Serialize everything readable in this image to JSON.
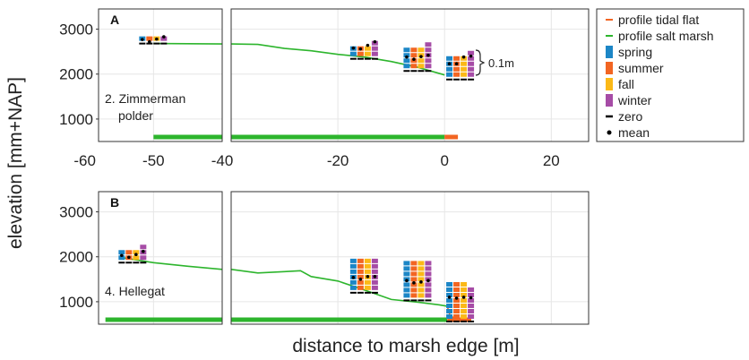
{
  "chart_data": {
    "type": "line",
    "xlabel": "distance to marsh edge [m]",
    "ylabel": "elevation [mm+NAP]",
    "y_ticks": [
      "1000",
      "2000",
      "3000"
    ],
    "x_ticks_left": [
      "-60",
      "-50",
      "-40"
    ],
    "x_ticks_right": [
      "-20",
      "0",
      "20"
    ],
    "colors": {
      "profile_tidal_flat": "#f26522",
      "profile_salt_marsh": "#2db52d",
      "spring": "#1c86c6",
      "summer": "#f26522",
      "fall": "#fbb917",
      "winter": "#a64ca6",
      "grid": "#e6e6e6"
    },
    "legend": {
      "placement": "right",
      "items": [
        {
          "key": "profile_tidal_flat",
          "label": "profile tidal flat",
          "symbol": "line"
        },
        {
          "key": "profile_salt_marsh",
          "label": "profile salt marsh",
          "symbol": "line"
        },
        {
          "key": "spring",
          "label": "spring",
          "symbol": "box"
        },
        {
          "key": "summer",
          "label": "summer",
          "symbol": "box"
        },
        {
          "key": "fall",
          "label": "fall",
          "symbol": "box"
        },
        {
          "key": "winter",
          "label": "winter",
          "symbol": "box"
        },
        {
          "key": "zero",
          "label": "zero",
          "symbol": "dash"
        },
        {
          "key": "mean",
          "label": "mean",
          "symbol": "dot"
        }
      ]
    },
    "scale_bar_label": "0.1m",
    "panels": [
      {
        "letter": "A",
        "site": [
          "2. Zimmerman",
          "polder"
        ],
        "ylim": [
          500,
          3450
        ],
        "left_xlim": [
          -58,
          -40
        ],
        "right_xlim": [
          -40,
          27
        ],
        "salt_marsh_profile": [
          [
            -50,
            2680
          ],
          [
            -40,
            2670
          ],
          [
            -35,
            2660
          ],
          [
            -30,
            2570
          ],
          [
            -25,
            2520
          ],
          [
            -20,
            2440
          ],
          [
            -15,
            2380
          ],
          [
            -10,
            2280
          ],
          [
            -5,
            2150
          ],
          [
            0,
            1980
          ]
        ],
        "tidal_flat_profile": [],
        "marsh_extent": [
          -50,
          0
        ],
        "flat_extent": [
          0,
          2.5
        ],
        "stations": [
          {
            "x": -50,
            "base": 2700,
            "zero": 2700,
            "values": {
              "spring": [
                0,
                0.3
              ],
              "summer": [
                0,
                0.2
              ],
              "fall": [
                0,
                0.5
              ],
              "winter": [
                0,
                0.9
              ]
            },
            "means": {
              "spring": 2770,
              "summer": 2720,
              "fall": 2780,
              "winter": 2830
            }
          },
          {
            "x": -15,
            "base": 2360,
            "zero": 2360,
            "values": {
              "spring": [
                0,
                2
              ],
              "summer": [
                0,
                1.6
              ],
              "fall": [
                0,
                2
              ],
              "winter": [
                0,
                3
              ]
            },
            "means": {
              "spring": 2580,
              "summer": 2560,
              "fall": 2640,
              "winter": 2720
            }
          },
          {
            "x": -5,
            "base": 2090,
            "zero": 2090,
            "values": {
              "spring": [
                0,
                4
              ],
              "summer": [
                0,
                4
              ],
              "fall": [
                0,
                4
              ],
              "winter": [
                0,
                5
              ]
            },
            "means": {
              "spring": 2380,
              "summer": 2330,
              "fall": 2390,
              "winter": 2420
            }
          },
          {
            "x": 3,
            "base": 1900,
            "zero": 1900,
            "values": {
              "spring": [
                0,
                4
              ],
              "summer": [
                0,
                4
              ],
              "fall": [
                0,
                4
              ],
              "winter": [
                0,
                5
              ]
            },
            "means": {
              "spring": 2230,
              "summer": 2230,
              "fall": 2380,
              "winter": 2400
            }
          }
        ]
      },
      {
        "letter": "B",
        "site": [
          "4. Hellegat"
        ],
        "ylim": [
          500,
          3450
        ],
        "left_xlim": [
          -58,
          -40
        ],
        "right_xlim": [
          -40,
          27
        ],
        "salt_marsh_profile": [
          [
            -55,
            1990
          ],
          [
            -50,
            1870
          ],
          [
            -45,
            1790
          ],
          [
            -40,
            1720
          ],
          [
            -35,
            1640
          ],
          [
            -30,
            1670
          ],
          [
            -27,
            1690
          ],
          [
            -25,
            1560
          ],
          [
            -20,
            1460
          ],
          [
            -15,
            1260
          ],
          [
            -10,
            1050
          ],
          [
            -5,
            990
          ],
          [
            -1,
            930
          ],
          [
            0.5,
            900
          ]
        ],
        "tidal_flat_profile": [
          [
            0.5,
            900
          ],
          [
            1,
            700
          ],
          [
            2,
            620
          ],
          [
            3,
            600
          ]
        ],
        "marsh_extent": [
          -57,
          0.5
        ],
        "flat_extent": [
          0.5,
          5
        ],
        "stations": [
          {
            "x": -53,
            "base": 1890,
            "zero": 1890,
            "values": {
              "spring": [
                0,
                2
              ],
              "summer": [
                0,
                1.5
              ],
              "fall": [
                0,
                2
              ],
              "winter": [
                0,
                3
              ]
            },
            "means": {
              "spring": 2030,
              "summer": 1990,
              "fall": 2050,
              "winter": 2120
            }
          },
          {
            "x": -15,
            "base": 1220,
            "zero": 1220,
            "values": {
              "spring": [
                0,
                6
              ],
              "summer": [
                0,
                6
              ],
              "fall": [
                0,
                6
              ],
              "winter": [
                0,
                6
              ]
            },
            "means": {
              "spring": 1540,
              "summer": 1500,
              "fall": 1560,
              "winter": 1560
            }
          },
          {
            "x": -5,
            "base": 1050,
            "zero": 1050,
            "values": {
              "spring": [
                0,
                7
              ],
              "summer": [
                0,
                7
              ],
              "fall": [
                0,
                7
              ],
              "winter": [
                0,
                7
              ]
            },
            "means": {
              "spring": 1470,
              "summer": 1420,
              "fall": 1440,
              "winter": 1470
            }
          },
          {
            "x": 3,
            "base": 580,
            "zero": 580,
            "values": {
              "spring": [
                0,
                7
              ],
              "summer": [
                0,
                7
              ],
              "fall": [
                0,
                7
              ],
              "winter": [
                0,
                6
              ]
            },
            "means": {
              "spring": 1100,
              "summer": 1080,
              "fall": 1100,
              "winter": 1090
            }
          }
        ]
      }
    ]
  }
}
